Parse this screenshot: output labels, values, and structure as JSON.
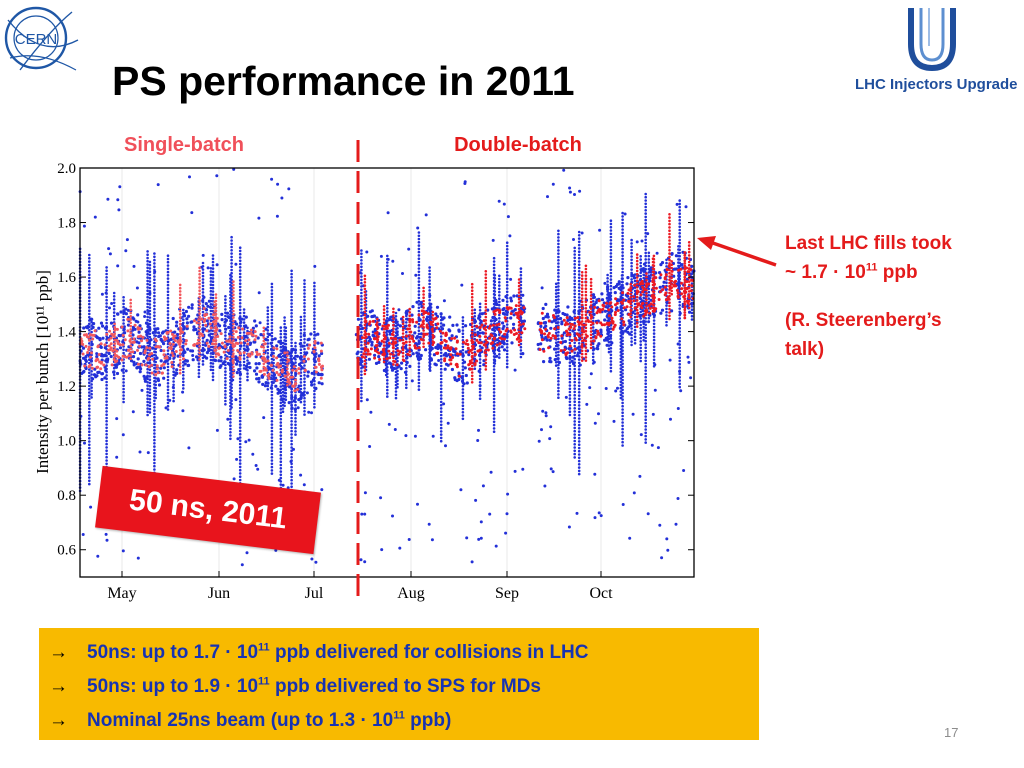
{
  "header": {
    "title": "PS performance in 2011",
    "cern_logo_text": "CERN",
    "liu_logo_text": "LHC Injectors Upgrade"
  },
  "chart_data": {
    "type": "scatter",
    "ylabel": "Intensity per bunch [10¹¹ ppb]",
    "ylim": [
      0.5,
      2.0
    ],
    "yticks": [
      "0.6",
      "0.8",
      "1.0",
      "1.2",
      "1.4",
      "1.6",
      "1.8",
      "2.0"
    ],
    "xticks": [
      "May",
      "Jun",
      "Jul",
      "Aug",
      "Sep",
      "Oct"
    ],
    "grid": true,
    "regions": [
      {
        "label": "Single-batch"
      },
      {
        "label": "Double-batch"
      }
    ],
    "series": [
      {
        "color": "#2330d8",
        "pattern": "bulk"
      },
      {
        "color": "#f2585e",
        "pattern": "overlay"
      }
    ],
    "trend": [
      [
        0.0,
        1.34
      ],
      [
        0.04,
        1.33
      ],
      [
        0.08,
        1.38
      ],
      [
        0.12,
        1.3
      ],
      [
        0.16,
        1.35
      ],
      [
        0.2,
        1.42
      ],
      [
        0.24,
        1.36
      ],
      [
        0.28,
        1.34
      ],
      [
        0.32,
        1.28
      ],
      [
        0.35,
        1.22
      ],
      [
        0.37,
        1.3
      ],
      [
        0.42,
        1.28
      ],
      [
        0.47,
        1.38
      ],
      [
        0.52,
        1.34
      ],
      [
        0.56,
        1.42
      ],
      [
        0.6,
        1.35
      ],
      [
        0.62,
        1.3
      ],
      [
        0.66,
        1.38
      ],
      [
        0.7,
        1.45
      ],
      [
        0.75,
        1.4
      ],
      [
        0.8,
        1.38
      ],
      [
        0.85,
        1.45
      ],
      [
        0.9,
        1.5
      ],
      [
        0.94,
        1.55
      ],
      [
        0.98,
        1.6
      ],
      [
        1.0,
        1.55
      ]
    ],
    "divider_fraction": 0.455,
    "annotation_point": {
      "x": 1.0,
      "y": 1.7
    }
  },
  "stamp": {
    "text": "50 ns, 2011"
  },
  "note": {
    "line1": "Last LHC fills took",
    "line2_prefix": "~ 1.7 · 10",
    "line2_sup": "11",
    "line2_suffix": " ppb",
    "line3": "(R. Steerenberg’s",
    "line4": "talk)"
  },
  "box": {
    "items": [
      {
        "arrow": "→",
        "prefix": "50ns: up to 1.7 · 10",
        "sup": "11",
        "suffix": " ppb delivered for collisions in LHC"
      },
      {
        "arrow": "→",
        "prefix": "50ns: up to 1.9 · 10",
        "sup": "11",
        "suffix": " ppb delivered to SPS for MDs"
      },
      {
        "arrow": "→",
        "prefix": "Nominal 25ns beam (up to 1.3 · 10",
        "sup": "11",
        "suffix": " ppb)"
      }
    ]
  },
  "page_number": "17",
  "colors": {
    "accent_red": "#e41b1b",
    "box_yellow": "#f8ba00",
    "text_blue": "#1733b2",
    "cern_blue": "#1f57a6",
    "liu_blue": "#1f4e9c"
  }
}
